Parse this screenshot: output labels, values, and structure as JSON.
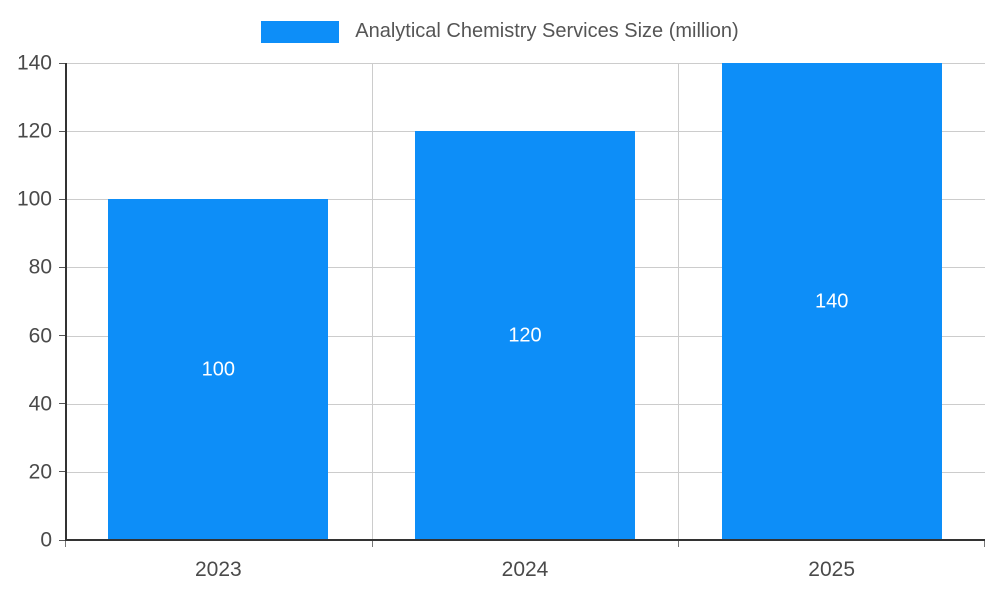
{
  "colors": {
    "bar": "#0d8ef8",
    "bar_label_text": "#ffffff"
  },
  "legend": {
    "label": "Analytical Chemistry Services Size (million)"
  },
  "chart_data": {
    "type": "bar",
    "title": "Analytical Chemistry Services Size (million)",
    "categories": [
      "2023",
      "2024",
      "2025"
    ],
    "values": [
      100,
      120,
      140
    ],
    "bar_labels": [
      "100",
      "120",
      "140"
    ],
    "xlabel": "",
    "ylabel": "",
    "ylim": [
      0,
      140
    ],
    "yticks": [
      0,
      20,
      40,
      60,
      80,
      100,
      120,
      140
    ],
    "grid": true,
    "legend_position": "top"
  }
}
